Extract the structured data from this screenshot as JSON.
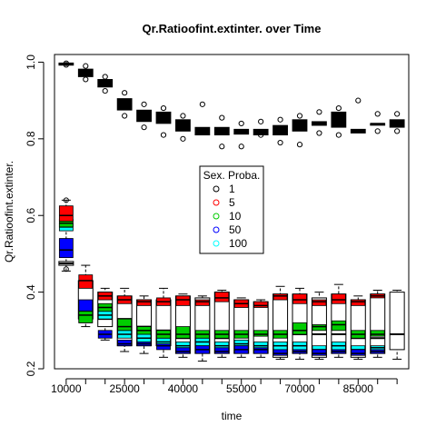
{
  "chart_data": {
    "type": "boxplot",
    "title": "Qr.Ratioofint.extinter. over Time",
    "xlabel": "time",
    "ylabel": "Qr.Ratioofint.extinter.",
    "ylim": [
      0.2,
      1.02
    ],
    "yticks": [
      0.2,
      0.4,
      0.6,
      0.8,
      1.0
    ],
    "ytick_labels": [
      "0.2",
      "0.4",
      "0.6",
      "0.8",
      "1.0"
    ],
    "x": [
      10000,
      15000,
      20000,
      25000,
      30000,
      35000,
      40000,
      45000,
      50000,
      55000,
      60000,
      65000,
      70000,
      75000,
      80000,
      85000,
      90000,
      95000
    ],
    "xtick_labels": [
      "10000",
      "25000",
      "40000",
      "55000",
      "70000",
      "85000"
    ],
    "xtick_values": [
      10000,
      25000,
      40000,
      55000,
      70000,
      85000
    ],
    "legend": {
      "title": "Sex. Proba.",
      "position": "center",
      "entries": [
        {
          "label": "1",
          "color": "#000000"
        },
        {
          "label": "5",
          "color": "#ff0000"
        },
        {
          "label": "10",
          "color": "#00cc00"
        },
        {
          "label": "50",
          "color": "#0000ff"
        },
        {
          "label": "100",
          "color": "#00ffff"
        }
      ]
    },
    "series": [
      {
        "name": "1",
        "color": "#000000",
        "boxes": [
          {
            "x": 10000,
            "q1": 0.992,
            "median": 0.995,
            "q3": 0.998,
            "outliers": [
              0.993,
              0.997
            ]
          },
          {
            "x": 15000,
            "q1": 0.962,
            "median": 0.972,
            "q3": 0.982,
            "outliers": [
              0.955,
              0.99
            ]
          },
          {
            "x": 20000,
            "q1": 0.935,
            "median": 0.945,
            "q3": 0.955,
            "outliers": [
              0.925,
              0.962
            ]
          },
          {
            "x": 25000,
            "q1": 0.875,
            "median": 0.89,
            "q3": 0.905,
            "outliers": [
              0.86,
              0.92
            ]
          },
          {
            "x": 30000,
            "q1": 0.845,
            "median": 0.86,
            "q3": 0.875,
            "outliers": [
              0.83,
              0.89
            ]
          },
          {
            "x": 35000,
            "q1": 0.84,
            "median": 0.855,
            "q3": 0.87,
            "outliers": [
              0.81,
              0.88
            ]
          },
          {
            "x": 40000,
            "q1": 0.82,
            "median": 0.835,
            "q3": 0.85,
            "outliers": [
              0.8,
              0.86
            ]
          },
          {
            "x": 45000,
            "q1": 0.81,
            "median": 0.815,
            "q3": 0.83,
            "outliers": [
              0.89
            ]
          },
          {
            "x": 50000,
            "q1": 0.81,
            "median": 0.82,
            "q3": 0.83,
            "outliers": [
              0.78,
              0.855
            ]
          },
          {
            "x": 55000,
            "q1": 0.812,
            "median": 0.818,
            "q3": 0.825,
            "outliers": [
              0.78,
              0.84
            ]
          },
          {
            "x": 60000,
            "q1": 0.81,
            "median": 0.818,
            "q3": 0.825,
            "outliers": [
              0.81,
              0.845
            ]
          },
          {
            "x": 65000,
            "q1": 0.81,
            "median": 0.82,
            "q3": 0.835,
            "outliers": [
              0.79,
              0.85
            ]
          },
          {
            "x": 70000,
            "q1": 0.82,
            "median": 0.83,
            "q3": 0.85,
            "outliers": [
              0.785,
              0.86
            ]
          },
          {
            "x": 75000,
            "q1": 0.835,
            "median": 0.84,
            "q3": 0.845,
            "outliers": [
              0.815,
              0.87
            ]
          },
          {
            "x": 80000,
            "q1": 0.83,
            "median": 0.845,
            "q3": 0.87,
            "outliers": [
              0.81,
              0.88
            ]
          },
          {
            "x": 85000,
            "q1": 0.815,
            "median": 0.82,
            "q3": 0.825,
            "outliers": [
              0.9
            ]
          },
          {
            "x": 90000,
            "q1": 0.84,
            "median": 0.84,
            "q3": 0.84,
            "outliers": [
              0.82,
              0.865
            ]
          },
          {
            "x": 95000,
            "q1": 0.83,
            "median": 0.84,
            "q3": 0.85,
            "outliers": [
              0.82,
              0.865
            ]
          }
        ]
      },
      {
        "name": "5",
        "color": "#ff0000",
        "boxes": [
          {
            "x": 10000,
            "q1": 0.585,
            "median": 0.6,
            "q3": 0.625
          },
          {
            "x": 15000,
            "q1": 0.41,
            "median": 0.43,
            "q3": 0.445
          },
          {
            "x": 20000,
            "q1": 0.38,
            "median": 0.39,
            "q3": 0.4
          },
          {
            "x": 25000,
            "q1": 0.37,
            "median": 0.38,
            "q3": 0.39
          },
          {
            "x": 30000,
            "q1": 0.365,
            "median": 0.375,
            "q3": 0.38
          },
          {
            "x": 35000,
            "q1": 0.365,
            "median": 0.375,
            "q3": 0.385
          },
          {
            "x": 40000,
            "q1": 0.365,
            "median": 0.38,
            "q3": 0.39
          },
          {
            "x": 45000,
            "q1": 0.365,
            "median": 0.375,
            "q3": 0.38
          },
          {
            "x": 50000,
            "q1": 0.375,
            "median": 0.385,
            "q3": 0.4
          },
          {
            "x": 55000,
            "q1": 0.36,
            "median": 0.37,
            "q3": 0.38
          },
          {
            "x": 60000,
            "q1": 0.36,
            "median": 0.365,
            "q3": 0.375
          },
          {
            "x": 65000,
            "q1": 0.38,
            "median": 0.39,
            "q3": 0.395
          },
          {
            "x": 70000,
            "q1": 0.37,
            "median": 0.38,
            "q3": 0.395
          },
          {
            "x": 75000,
            "q1": 0.365,
            "median": 0.375,
            "q3": 0.38
          },
          {
            "x": 80000,
            "q1": 0.37,
            "median": 0.38,
            "q3": 0.395
          },
          {
            "x": 85000,
            "q1": 0.365,
            "median": 0.375,
            "q3": 0.38
          },
          {
            "x": 90000,
            "q1": 0.385,
            "median": 0.39,
            "q3": 0.395
          }
        ]
      },
      {
        "name": "10",
        "color": "#00cc00",
        "boxes": [
          {
            "x": 10000,
            "q1": 0.57,
            "median": 0.58,
            "q3": 0.59
          },
          {
            "x": 15000,
            "q1": 0.32,
            "median": 0.34,
            "q3": 0.35
          },
          {
            "x": 20000,
            "q1": 0.35,
            "median": 0.36,
            "q3": 0.37
          },
          {
            "x": 25000,
            "q1": 0.3,
            "median": 0.31,
            "q3": 0.33
          },
          {
            "x": 30000,
            "q1": 0.29,
            "median": 0.3,
            "q3": 0.31
          },
          {
            "x": 35000,
            "q1": 0.28,
            "median": 0.29,
            "q3": 0.3
          },
          {
            "x": 40000,
            "q1": 0.28,
            "median": 0.29,
            "q3": 0.31
          },
          {
            "x": 45000,
            "q1": 0.28,
            "median": 0.29,
            "q3": 0.3
          },
          {
            "x": 50000,
            "q1": 0.28,
            "median": 0.29,
            "q3": 0.3
          },
          {
            "x": 55000,
            "q1": 0.28,
            "median": 0.29,
            "q3": 0.3
          },
          {
            "x": 60000,
            "q1": 0.285,
            "median": 0.29,
            "q3": 0.3
          },
          {
            "x": 65000,
            "q1": 0.28,
            "median": 0.29,
            "q3": 0.3
          },
          {
            "x": 70000,
            "q1": 0.29,
            "median": 0.3,
            "q3": 0.32
          },
          {
            "x": 75000,
            "q1": 0.3,
            "median": 0.31,
            "q3": 0.315
          },
          {
            "x": 80000,
            "q1": 0.3,
            "median": 0.315,
            "q3": 0.325
          },
          {
            "x": 85000,
            "q1": 0.28,
            "median": 0.29,
            "q3": 0.3
          },
          {
            "x": 90000,
            "q1": 0.285,
            "median": 0.29,
            "q3": 0.3
          }
        ]
      },
      {
        "name": "50",
        "color": "#0000ff",
        "boxes": [
          {
            "x": 10000,
            "q1": 0.49,
            "median": 0.51,
            "q3": 0.54
          },
          {
            "x": 15000,
            "q1": 0.32,
            "median": 0.35,
            "q3": 0.38
          },
          {
            "x": 20000,
            "q1": 0.28,
            "median": 0.29,
            "q3": 0.3
          },
          {
            "x": 25000,
            "q1": 0.26,
            "median": 0.265,
            "q3": 0.275
          },
          {
            "x": 30000,
            "q1": 0.26,
            "median": 0.265,
            "q3": 0.27
          },
          {
            "x": 35000,
            "q1": 0.25,
            "median": 0.26,
            "q3": 0.265
          },
          {
            "x": 40000,
            "q1": 0.24,
            "median": 0.245,
            "q3": 0.255
          },
          {
            "x": 45000,
            "q1": 0.24,
            "median": 0.25,
            "q3": 0.26
          },
          {
            "x": 50000,
            "q1": 0.24,
            "median": 0.245,
            "q3": 0.255
          },
          {
            "x": 55000,
            "q1": 0.24,
            "median": 0.25,
            "q3": 0.26
          },
          {
            "x": 60000,
            "q1": 0.24,
            "median": 0.25,
            "q3": 0.255
          },
          {
            "x": 65000,
            "q1": 0.235,
            "median": 0.24,
            "q3": 0.25
          },
          {
            "x": 70000,
            "q1": 0.24,
            "median": 0.245,
            "q3": 0.25
          },
          {
            "x": 75000,
            "q1": 0.235,
            "median": 0.24,
            "q3": 0.25
          },
          {
            "x": 80000,
            "q1": 0.24,
            "median": 0.245,
            "q3": 0.25
          },
          {
            "x": 85000,
            "q1": 0.235,
            "median": 0.24,
            "q3": 0.25
          },
          {
            "x": 90000,
            "q1": 0.24,
            "median": 0.245,
            "q3": 0.25
          }
        ]
      },
      {
        "name": "100",
        "color": "#00ffff",
        "boxes": [
          {
            "x": 10000,
            "q1": 0.56,
            "median": 0.57,
            "q3": 0.58
          },
          {
            "x": 15000,
            "q1": 0.33,
            "median": 0.34,
            "q3": 0.35
          },
          {
            "x": 20000,
            "q1": 0.33,
            "median": 0.34,
            "q3": 0.35
          },
          {
            "x": 25000,
            "q1": 0.28,
            "median": 0.29,
            "q3": 0.3
          },
          {
            "x": 30000,
            "q1": 0.27,
            "median": 0.28,
            "q3": 0.29
          },
          {
            "x": 35000,
            "q1": 0.26,
            "median": 0.27,
            "q3": 0.28
          },
          {
            "x": 40000,
            "q1": 0.255,
            "median": 0.26,
            "q3": 0.27
          },
          {
            "x": 45000,
            "q1": 0.26,
            "median": 0.27,
            "q3": 0.28
          },
          {
            "x": 50000,
            "q1": 0.25,
            "median": 0.26,
            "q3": 0.27
          },
          {
            "x": 55000,
            "q1": 0.26,
            "median": 0.265,
            "q3": 0.275
          },
          {
            "x": 60000,
            "q1": 0.25,
            "median": 0.26,
            "q3": 0.27
          },
          {
            "x": 65000,
            "q1": 0.25,
            "median": 0.26,
            "q3": 0.27
          },
          {
            "x": 70000,
            "q1": 0.25,
            "median": 0.26,
            "q3": 0.27
          },
          {
            "x": 75000,
            "q1": 0.24,
            "median": 0.25,
            "q3": 0.26
          },
          {
            "x": 80000,
            "q1": 0.25,
            "median": 0.26,
            "q3": 0.27
          },
          {
            "x": 85000,
            "q1": 0.245,
            "median": 0.25,
            "q3": 0.26
          },
          {
            "x": 90000,
            "q1": 0.25,
            "median": 0.255,
            "q3": 0.26
          }
        ]
      }
    ],
    "top_boxes": [
      {
        "x": 10000,
        "q1": 0.47,
        "median": 0.475,
        "q3": 0.48
      },
      {
        "x": 15000,
        "q1": 0.33,
        "median": 0.42,
        "q3": 0.43
      },
      {
        "x": 20000,
        "q1": 0.31,
        "median": 0.33,
        "q3": 0.4
      },
      {
        "x": 25000,
        "q1": 0.26,
        "median": 0.33,
        "q3": 0.39
      },
      {
        "x": 30000,
        "q1": 0.26,
        "median": 0.31,
        "q3": 0.38
      },
      {
        "x": 35000,
        "q1": 0.26,
        "median": 0.3,
        "q3": 0.38
      },
      {
        "x": 40000,
        "q1": 0.24,
        "median": 0.28,
        "q3": 0.39
      },
      {
        "x": 45000,
        "q1": 0.24,
        "median": 0.28,
        "q3": 0.385
      },
      {
        "x": 50000,
        "q1": 0.24,
        "median": 0.28,
        "q3": 0.4
      },
      {
        "x": 55000,
        "q1": 0.24,
        "median": 0.29,
        "q3": 0.38
      },
      {
        "x": 60000,
        "q1": 0.24,
        "median": 0.29,
        "q3": 0.375
      },
      {
        "x": 65000,
        "q1": 0.23,
        "median": 0.29,
        "q3": 0.395
      },
      {
        "x": 70000,
        "q1": 0.24,
        "median": 0.29,
        "q3": 0.395
      },
      {
        "x": 75000,
        "q1": 0.23,
        "median": 0.29,
        "q3": 0.385
      },
      {
        "x": 80000,
        "q1": 0.24,
        "median": 0.29,
        "q3": 0.395
      },
      {
        "x": 85000,
        "q1": 0.23,
        "median": 0.28,
        "q3": 0.38
      },
      {
        "x": 90000,
        "q1": 0.24,
        "median": 0.28,
        "q3": 0.395
      },
      {
        "x": 95000,
        "q1": 0.25,
        "median": 0.29,
        "q3": 0.4
      }
    ],
    "whiskers": [
      {
        "x": 10000,
        "low": 0.455,
        "high": 0.64,
        "outliers": [
          0.46,
          0.64
        ]
      },
      {
        "x": 15000,
        "low": 0.31,
        "high": 0.47
      },
      {
        "x": 20000,
        "low": 0.275,
        "high": 0.41
      },
      {
        "x": 25000,
        "low": 0.245,
        "high": 0.41
      },
      {
        "x": 30000,
        "low": 0.24,
        "high": 0.39
      },
      {
        "x": 35000,
        "low": 0.23,
        "high": 0.41
      },
      {
        "x": 40000,
        "low": 0.23,
        "high": 0.395
      },
      {
        "x": 45000,
        "low": 0.22,
        "high": 0.39
      },
      {
        "x": 50000,
        "low": 0.23,
        "high": 0.405
      },
      {
        "x": 55000,
        "low": 0.23,
        "high": 0.385
      },
      {
        "x": 60000,
        "low": 0.23,
        "high": 0.38
      },
      {
        "x": 65000,
        "low": 0.225,
        "high": 0.415
      },
      {
        "x": 70000,
        "low": 0.225,
        "high": 0.41
      },
      {
        "x": 75000,
        "low": 0.225,
        "high": 0.4
      },
      {
        "x": 80000,
        "low": 0.23,
        "high": 0.42
      },
      {
        "x": 85000,
        "low": 0.225,
        "high": 0.39
      },
      {
        "x": 90000,
        "low": 0.23,
        "high": 0.405
      },
      {
        "x": 95000,
        "low": 0.225,
        "high": 0.405
      }
    ]
  }
}
